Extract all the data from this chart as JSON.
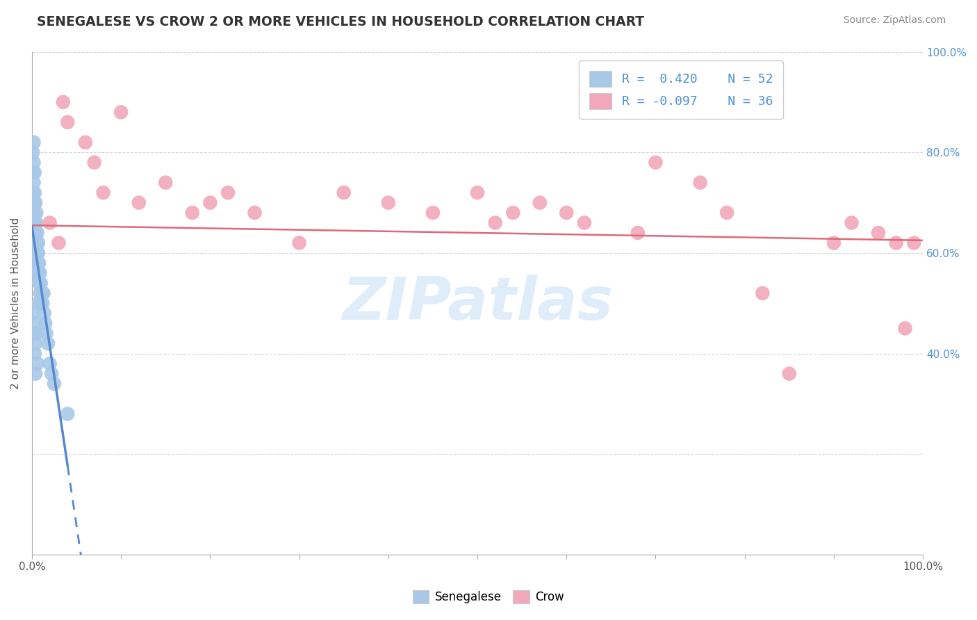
{
  "title": "SENEGALESE VS CROW 2 OR MORE VEHICLES IN HOUSEHOLD CORRELATION CHART",
  "source": "Source: ZipAtlas.com",
  "ylabel": "2 or more Vehicles in Household",
  "blue_label": "Senegalese",
  "pink_label": "Crow",
  "blue_R": 0.42,
  "blue_N": 52,
  "pink_R": -0.097,
  "pink_N": 36,
  "blue_color": "#a8c8e8",
  "pink_color": "#f2a8ba",
  "blue_line_color": "#5588cc",
  "pink_line_color": "#e06878",
  "grid_color": "#d0d0d0",
  "background": "#ffffff",
  "watermark_text": "ZIPatlas",
  "watermark_color": "#c5ddf5",
  "right_tick_color": "#5090d8",
  "axis_label_color": "#555555",
  "title_color": "#333333",
  "source_color": "#888888",
  "blue_x": [
    0.001,
    0.001,
    0.001,
    0.002,
    0.002,
    0.002,
    0.002,
    0.003,
    0.003,
    0.003,
    0.003,
    0.003,
    0.004,
    0.004,
    0.004,
    0.004,
    0.005,
    0.005,
    0.005,
    0.005,
    0.006,
    0.006,
    0.006,
    0.007,
    0.007,
    0.007,
    0.008,
    0.008,
    0.009,
    0.009,
    0.01,
    0.01,
    0.011,
    0.012,
    0.013,
    0.014,
    0.015,
    0.016,
    0.018,
    0.02,
    0.022,
    0.025,
    0.001,
    0.002,
    0.003,
    0.003,
    0.004,
    0.004,
    0.005,
    0.006,
    0.007,
    0.04
  ],
  "blue_y": [
    0.72,
    0.76,
    0.8,
    0.74,
    0.78,
    0.68,
    0.82,
    0.7,
    0.76,
    0.72,
    0.66,
    0.6,
    0.64,
    0.7,
    0.58,
    0.62,
    0.68,
    0.62,
    0.56,
    0.66,
    0.6,
    0.64,
    0.58,
    0.62,
    0.56,
    0.6,
    0.58,
    0.54,
    0.52,
    0.56,
    0.54,
    0.5,
    0.52,
    0.5,
    0.52,
    0.48,
    0.46,
    0.44,
    0.42,
    0.38,
    0.36,
    0.34,
    0.48,
    0.44,
    0.4,
    0.46,
    0.42,
    0.36,
    0.44,
    0.38,
    0.5,
    0.28
  ],
  "pink_x": [
    0.02,
    0.03,
    0.035,
    0.04,
    0.06,
    0.07,
    0.08,
    0.1,
    0.12,
    0.15,
    0.18,
    0.2,
    0.22,
    0.25,
    0.3,
    0.35,
    0.4,
    0.45,
    0.5,
    0.52,
    0.54,
    0.57,
    0.6,
    0.62,
    0.68,
    0.7,
    0.75,
    0.78,
    0.82,
    0.85,
    0.9,
    0.92,
    0.95,
    0.97,
    0.98,
    0.99
  ],
  "pink_y": [
    0.66,
    0.62,
    0.9,
    0.86,
    0.82,
    0.78,
    0.72,
    0.88,
    0.7,
    0.74,
    0.68,
    0.7,
    0.72,
    0.68,
    0.62,
    0.72,
    0.7,
    0.68,
    0.72,
    0.66,
    0.68,
    0.7,
    0.68,
    0.66,
    0.64,
    0.78,
    0.74,
    0.68,
    0.52,
    0.36,
    0.62,
    0.66,
    0.64,
    0.62,
    0.45,
    0.62
  ]
}
